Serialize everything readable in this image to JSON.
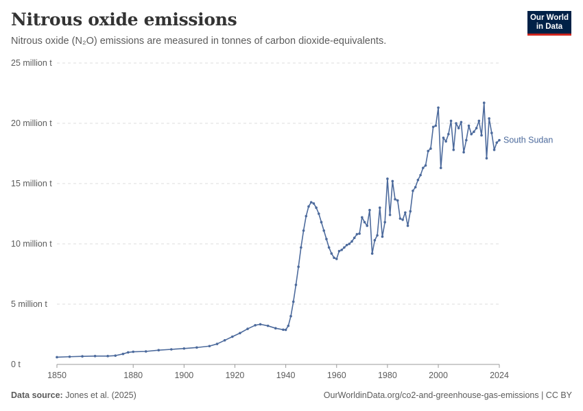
{
  "header": {
    "title": "Nitrous oxide emissions",
    "subtitle": "Nitrous oxide (N₂O) emissions are measured in tonnes of carbon dioxide-equivalents."
  },
  "logo": {
    "line1": "Our World",
    "line2": "in Data",
    "bg_color": "#002147",
    "accent_color": "#ce261e"
  },
  "footer": {
    "source_label": "Data source:",
    "source_text": "Jones et al. (2025)",
    "url": "OurWorldinData.org/co2-and-greenhouse-gas-emissions | CC BY"
  },
  "chart_data": {
    "type": "line",
    "title": "Nitrous oxide emissions",
    "xlabel": "",
    "ylabel": "",
    "xlim": [
      1850,
      2024
    ],
    "ylim": [
      0,
      25000000
    ],
    "grid": true,
    "y_ticks": [
      {
        "value": 0,
        "label": "0 t"
      },
      {
        "value": 5000000,
        "label": "5 million t"
      },
      {
        "value": 10000000,
        "label": "10 million t"
      },
      {
        "value": 15000000,
        "label": "15 million t"
      },
      {
        "value": 20000000,
        "label": "20 million t"
      },
      {
        "value": 25000000,
        "label": "25 million t"
      }
    ],
    "x_ticks": [
      {
        "value": 1850,
        "label": "1850"
      },
      {
        "value": 1880,
        "label": "1880"
      },
      {
        "value": 1900,
        "label": "1900"
      },
      {
        "value": 1920,
        "label": "1920"
      },
      {
        "value": 1940,
        "label": "1940"
      },
      {
        "value": 1960,
        "label": "1960"
      },
      {
        "value": 1980,
        "label": "1980"
      },
      {
        "value": 2000,
        "label": "2000"
      },
      {
        "value": 2024,
        "label": "2024"
      }
    ],
    "series": [
      {
        "name": "South Sudan",
        "color": "#4c6a9c",
        "points": [
          [
            1850,
            600000
          ],
          [
            1855,
            640000
          ],
          [
            1860,
            670000
          ],
          [
            1865,
            690000
          ],
          [
            1870,
            690000
          ],
          [
            1873,
            730000
          ],
          [
            1876,
            870000
          ],
          [
            1878,
            1000000
          ],
          [
            1880,
            1050000
          ],
          [
            1885,
            1080000
          ],
          [
            1890,
            1180000
          ],
          [
            1895,
            1250000
          ],
          [
            1900,
            1320000
          ],
          [
            1905,
            1400000
          ],
          [
            1910,
            1520000
          ],
          [
            1913,
            1700000
          ],
          [
            1916,
            2000000
          ],
          [
            1919,
            2300000
          ],
          [
            1922,
            2600000
          ],
          [
            1925,
            2950000
          ],
          [
            1928,
            3250000
          ],
          [
            1930,
            3330000
          ],
          [
            1933,
            3200000
          ],
          [
            1936,
            3000000
          ],
          [
            1939,
            2880000
          ],
          [
            1940,
            2870000
          ],
          [
            1941,
            3200000
          ],
          [
            1942,
            4000000
          ],
          [
            1943,
            5200000
          ],
          [
            1944,
            6600000
          ],
          [
            1945,
            8100000
          ],
          [
            1946,
            9700000
          ],
          [
            1947,
            11100000
          ],
          [
            1948,
            12300000
          ],
          [
            1949,
            13100000
          ],
          [
            1950,
            13450000
          ],
          [
            1951,
            13350000
          ],
          [
            1952,
            13000000
          ],
          [
            1953,
            12500000
          ],
          [
            1954,
            11800000
          ],
          [
            1955,
            11100000
          ],
          [
            1956,
            10400000
          ],
          [
            1957,
            9700000
          ],
          [
            1958,
            9200000
          ],
          [
            1959,
            8850000
          ],
          [
            1960,
            8750000
          ],
          [
            1961,
            9400000
          ],
          [
            1962,
            9500000
          ],
          [
            1963,
            9700000
          ],
          [
            1964,
            9900000
          ],
          [
            1965,
            10000000
          ],
          [
            1966,
            10200000
          ],
          [
            1967,
            10500000
          ],
          [
            1968,
            10800000
          ],
          [
            1969,
            10850000
          ],
          [
            1970,
            12200000
          ],
          [
            1971,
            11800000
          ],
          [
            1972,
            11500000
          ],
          [
            1973,
            12800000
          ],
          [
            1974,
            9200000
          ],
          [
            1975,
            10300000
          ],
          [
            1976,
            10700000
          ],
          [
            1977,
            13000000
          ],
          [
            1978,
            10600000
          ],
          [
            1979,
            11800000
          ],
          [
            1980,
            15400000
          ],
          [
            1981,
            12400000
          ],
          [
            1982,
            15200000
          ],
          [
            1983,
            13700000
          ],
          [
            1984,
            13600000
          ],
          [
            1985,
            12100000
          ],
          [
            1986,
            12000000
          ],
          [
            1987,
            12600000
          ],
          [
            1988,
            11500000
          ],
          [
            1989,
            12700000
          ],
          [
            1990,
            14400000
          ],
          [
            1991,
            14700000
          ],
          [
            1992,
            15300000
          ],
          [
            1993,
            15700000
          ],
          [
            1994,
            16300000
          ],
          [
            1995,
            16500000
          ],
          [
            1996,
            17700000
          ],
          [
            1997,
            17900000
          ],
          [
            1998,
            19700000
          ],
          [
            1999,
            19800000
          ],
          [
            2000,
            21300000
          ],
          [
            2001,
            16300000
          ],
          [
            2002,
            18800000
          ],
          [
            2003,
            18500000
          ],
          [
            2004,
            19100000
          ],
          [
            2005,
            20200000
          ],
          [
            2006,
            17800000
          ],
          [
            2007,
            20000000
          ],
          [
            2008,
            19600000
          ],
          [
            2009,
            20100000
          ],
          [
            2010,
            17600000
          ],
          [
            2011,
            18600000
          ],
          [
            2012,
            19800000
          ],
          [
            2013,
            19100000
          ],
          [
            2014,
            19300000
          ],
          [
            2015,
            19600000
          ],
          [
            2016,
            20200000
          ],
          [
            2017,
            19000000
          ],
          [
            2018,
            21700000
          ],
          [
            2019,
            17100000
          ],
          [
            2020,
            20400000
          ],
          [
            2021,
            19200000
          ],
          [
            2022,
            17800000
          ],
          [
            2023,
            18400000
          ],
          [
            2024,
            18600000
          ]
        ]
      }
    ]
  }
}
